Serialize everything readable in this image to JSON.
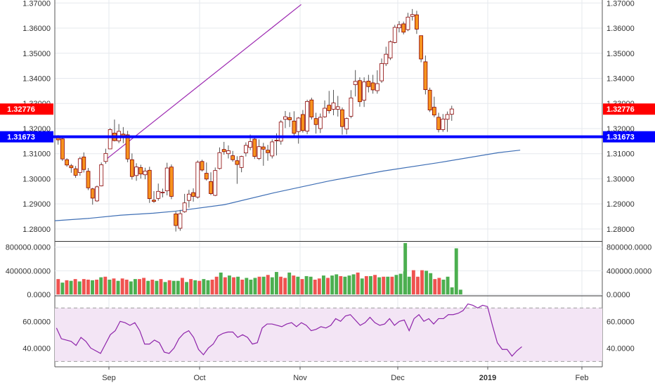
{
  "colors": {
    "up": "#26a69a",
    "down": "#ef5350",
    "candle_up_body": "#ffffff",
    "candle_down_body": "#f7931e",
    "candle_edge": "#8b0000",
    "vol_up": "#4caf50",
    "vol_down": "#ef5350",
    "sma": "#3f6fb5",
    "trendline": "#9c27b0",
    "support": "#0000ff",
    "price_badge": "#ff0000",
    "support_badge": "#0000ff",
    "rsi_line": "#8e24aa",
    "rsi_band": "#f3e5f5",
    "rsi_band_edge": "#9e9e9e",
    "grid": "#e6e9ee",
    "axis_text": "#333333"
  },
  "chart_data": [
    {
      "type": "candlestick",
      "panel": "price",
      "y_ticks": [
        "1.37000",
        "1.36000",
        "1.35000",
        "1.34000",
        "1.33000",
        "1.32000",
        "1.31000",
        "1.30000",
        "1.29000",
        "1.28000"
      ],
      "ylim": [
        1.2755,
        1.3712
      ],
      "badges": [
        {
          "label": "1.32776",
          "value": 1.32776,
          "color": "price_badge"
        },
        {
          "label": "1.31673",
          "value": 1.31673,
          "color": "support_badge"
        }
      ],
      "support_level": 1.31673,
      "trendline": [
        {
          "x": 0.09,
          "y": 1.3071
        },
        {
          "x": 0.45,
          "y": 1.3694
        }
      ],
      "sma": [
        [
          0,
          1.2833
        ],
        [
          0.06,
          1.2842
        ],
        [
          0.12,
          1.2855
        ],
        [
          0.18,
          1.2863
        ],
        [
          0.22,
          1.2871
        ],
        [
          0.31,
          1.2897
        ],
        [
          0.4,
          1.2944
        ],
        [
          0.5,
          1.2991
        ],
        [
          0.6,
          1.3031
        ],
        [
          0.7,
          1.3064
        ],
        [
          0.81,
          1.3104
        ],
        [
          0.85,
          1.3114
        ]
      ],
      "candles": [
        {
          "x": 0.006,
          "o": 1.3171,
          "h": 1.3174,
          "l": 1.3136,
          "c": 1.3155
        },
        {
          "x": 0.014,
          "o": 1.3159,
          "h": 1.3165,
          "l": 1.3071,
          "c": 1.3079
        },
        {
          "x": 0.022,
          "o": 1.3076,
          "h": 1.3082,
          "l": 1.3048,
          "c": 1.3055
        },
        {
          "x": 0.03,
          "o": 1.3052,
          "h": 1.3059,
          "l": 1.3024,
          "c": 1.3044
        },
        {
          "x": 0.038,
          "o": 1.304,
          "h": 1.3051,
          "l": 1.3004,
          "c": 1.3014
        },
        {
          "x": 0.046,
          "o": 1.3025,
          "h": 1.3088,
          "l": 1.3012,
          "c": 1.308
        },
        {
          "x": 0.053,
          "o": 1.3087,
          "h": 1.3105,
          "l": 1.3025,
          "c": 1.3037
        },
        {
          "x": 0.061,
          "o": 1.303,
          "h": 1.3043,
          "l": 1.2955,
          "c": 1.2964
        },
        {
          "x": 0.069,
          "o": 1.296,
          "h": 1.2964,
          "l": 1.2897,
          "c": 1.2923
        },
        {
          "x": 0.077,
          "o": 1.2912,
          "h": 1.2973,
          "l": 1.2908,
          "c": 1.2968
        },
        {
          "x": 0.085,
          "o": 1.2972,
          "h": 1.3065,
          "l": 1.297,
          "c": 1.3056
        },
        {
          "x": 0.093,
          "o": 1.3069,
          "h": 1.312,
          "l": 1.306,
          "c": 1.3101
        },
        {
          "x": 0.101,
          "o": 1.3119,
          "h": 1.3202,
          "l": 1.3119,
          "c": 1.3196
        },
        {
          "x": 0.109,
          "o": 1.3182,
          "h": 1.3236,
          "l": 1.3149,
          "c": 1.3152
        },
        {
          "x": 0.117,
          "o": 1.3151,
          "h": 1.3218,
          "l": 1.3142,
          "c": 1.3189
        },
        {
          "x": 0.125,
          "o": 1.3178,
          "h": 1.3206,
          "l": 1.3142,
          "c": 1.3166
        },
        {
          "x": 0.133,
          "o": 1.3175,
          "h": 1.3191,
          "l": 1.3066,
          "c": 1.3079
        },
        {
          "x": 0.141,
          "o": 1.3076,
          "h": 1.3101,
          "l": 1.2997,
          "c": 1.3009
        },
        {
          "x": 0.149,
          "o": 1.3013,
          "h": 1.3062,
          "l": 1.2992,
          "c": 1.3047
        },
        {
          "x": 0.157,
          "o": 1.3045,
          "h": 1.3056,
          "l": 1.3001,
          "c": 1.3019
        },
        {
          "x": 0.165,
          "o": 1.3016,
          "h": 1.3044,
          "l": 1.2998,
          "c": 1.3031
        },
        {
          "x": 0.173,
          "o": 1.3034,
          "h": 1.3048,
          "l": 1.2904,
          "c": 1.2921
        },
        {
          "x": 0.181,
          "o": 1.2915,
          "h": 1.2951,
          "l": 1.2904,
          "c": 1.291
        },
        {
          "x": 0.189,
          "o": 1.2922,
          "h": 1.2981,
          "l": 1.2913,
          "c": 1.295
        },
        {
          "x": 0.197,
          "o": 1.2945,
          "h": 1.2961,
          "l": 1.2926,
          "c": 1.2947
        },
        {
          "x": 0.205,
          "o": 1.2952,
          "h": 1.3064,
          "l": 1.2934,
          "c": 1.3043
        },
        {
          "x": 0.213,
          "o": 1.3047,
          "h": 1.3057,
          "l": 1.2919,
          "c": 1.293
        },
        {
          "x": 0.221,
          "o": 1.286,
          "h": 1.2869,
          "l": 1.279,
          "c": 1.2814
        },
        {
          "x": 0.229,
          "o": 1.2803,
          "h": 1.2876,
          "l": 1.2793,
          "c": 1.2861
        },
        {
          "x": 0.237,
          "o": 1.2869,
          "h": 1.294,
          "l": 1.2865,
          "c": 1.2904
        },
        {
          "x": 0.245,
          "o": 1.2914,
          "h": 1.2956,
          "l": 1.2885,
          "c": 1.2939
        },
        {
          "x": 0.253,
          "o": 1.2945,
          "h": 1.2962,
          "l": 1.2909,
          "c": 1.293
        },
        {
          "x": 0.261,
          "o": 1.2927,
          "h": 1.3073,
          "l": 1.2921,
          "c": 1.3066
        },
        {
          "x": 0.269,
          "o": 1.3069,
          "h": 1.3076,
          "l": 1.3029,
          "c": 1.3035
        },
        {
          "x": 0.277,
          "o": 1.3022,
          "h": 1.3065,
          "l": 1.2993,
          "c": 1.2999
        },
        {
          "x": 0.285,
          "o": 1.2989,
          "h": 1.3026,
          "l": 1.2935,
          "c": 1.2941
        },
        {
          "x": 0.293,
          "o": 1.2934,
          "h": 1.3045,
          "l": 1.2931,
          "c": 1.3033
        },
        {
          "x": 0.301,
          "o": 1.3041,
          "h": 1.3125,
          "l": 1.3037,
          "c": 1.3104
        },
        {
          "x": 0.309,
          "o": 1.3117,
          "h": 1.3147,
          "l": 1.3096,
          "c": 1.3108
        },
        {
          "x": 0.317,
          "o": 1.31,
          "h": 1.3133,
          "l": 1.3081,
          "c": 1.3112
        },
        {
          "x": 0.325,
          "o": 1.3092,
          "h": 1.3111,
          "l": 1.3068,
          "c": 1.3076
        },
        {
          "x": 0.333,
          "o": 1.3072,
          "h": 1.309,
          "l": 1.298,
          "c": 1.3057
        },
        {
          "x": 0.341,
          "o": 1.3045,
          "h": 1.3092,
          "l": 1.3026,
          "c": 1.3089
        },
        {
          "x": 0.349,
          "o": 1.3103,
          "h": 1.3145,
          "l": 1.3089,
          "c": 1.3133
        },
        {
          "x": 0.357,
          "o": 1.3125,
          "h": 1.3176,
          "l": 1.3114,
          "c": 1.3148
        },
        {
          "x": 0.365,
          "o": 1.3158,
          "h": 1.3168,
          "l": 1.3079,
          "c": 1.3089
        },
        {
          "x": 0.373,
          "o": 1.3081,
          "h": 1.3157,
          "l": 1.3075,
          "c": 1.3128
        },
        {
          "x": 0.381,
          "o": 1.3127,
          "h": 1.3143,
          "l": 1.3052,
          "c": 1.3118
        },
        {
          "x": 0.389,
          "o": 1.3114,
          "h": 1.3135,
          "l": 1.3072,
          "c": 1.3104
        },
        {
          "x": 0.397,
          "o": 1.3091,
          "h": 1.3157,
          "l": 1.3081,
          "c": 1.3147
        },
        {
          "x": 0.405,
          "o": 1.3154,
          "h": 1.3181,
          "l": 1.3093,
          "c": 1.3154
        },
        {
          "x": 0.413,
          "o": 1.315,
          "h": 1.3234,
          "l": 1.3136,
          "c": 1.3226
        },
        {
          "x": 0.421,
          "o": 1.3237,
          "h": 1.327,
          "l": 1.3202,
          "c": 1.3247
        },
        {
          "x": 0.429,
          "o": 1.3244,
          "h": 1.3265,
          "l": 1.3206,
          "c": 1.3235
        },
        {
          "x": 0.437,
          "o": 1.323,
          "h": 1.3269,
          "l": 1.3164,
          "c": 1.3181
        },
        {
          "x": 0.445,
          "o": 1.3188,
          "h": 1.3246,
          "l": 1.314,
          "c": 1.3242
        },
        {
          "x": 0.453,
          "o": 1.3256,
          "h": 1.3274,
          "l": 1.3184,
          "c": 1.3192
        },
        {
          "x": 0.461,
          "o": 1.319,
          "h": 1.3315,
          "l": 1.3178,
          "c": 1.3308
        },
        {
          "x": 0.469,
          "o": 1.3314,
          "h": 1.3323,
          "l": 1.3236,
          "c": 1.3246
        },
        {
          "x": 0.477,
          "o": 1.324,
          "h": 1.3263,
          "l": 1.318,
          "c": 1.3216
        },
        {
          "x": 0.485,
          "o": 1.32,
          "h": 1.326,
          "l": 1.3182,
          "c": 1.3245
        },
        {
          "x": 0.493,
          "o": 1.3247,
          "h": 1.3312,
          "l": 1.3243,
          "c": 1.3281
        },
        {
          "x": 0.501,
          "o": 1.3293,
          "h": 1.335,
          "l": 1.326,
          "c": 1.3271
        },
        {
          "x": 0.509,
          "o": 1.3277,
          "h": 1.3354,
          "l": 1.3253,
          "c": 1.3302
        },
        {
          "x": 0.517,
          "o": 1.3277,
          "h": 1.333,
          "l": 1.3248,
          "c": 1.3287
        },
        {
          "x": 0.525,
          "o": 1.3275,
          "h": 1.3284,
          "l": 1.3176,
          "c": 1.3208
        },
        {
          "x": 0.533,
          "o": 1.3198,
          "h": 1.3244,
          "l": 1.3177,
          "c": 1.324
        },
        {
          "x": 0.541,
          "o": 1.3249,
          "h": 1.3353,
          "l": 1.3241,
          "c": 1.3322
        },
        {
          "x": 0.549,
          "o": 1.3375,
          "h": 1.3433,
          "l": 1.3328,
          "c": 1.3388
        },
        {
          "x": 0.557,
          "o": 1.3391,
          "h": 1.3404,
          "l": 1.3287,
          "c": 1.3307
        },
        {
          "x": 0.565,
          "o": 1.3313,
          "h": 1.3404,
          "l": 1.3286,
          "c": 1.3386
        },
        {
          "x": 0.573,
          "o": 1.3389,
          "h": 1.3414,
          "l": 1.3344,
          "c": 1.3367
        },
        {
          "x": 0.581,
          "o": 1.3382,
          "h": 1.3414,
          "l": 1.3339,
          "c": 1.3354
        },
        {
          "x": 0.589,
          "o": 1.3351,
          "h": 1.3432,
          "l": 1.3339,
          "c": 1.3379
        },
        {
          "x": 0.597,
          "o": 1.339,
          "h": 1.3479,
          "l": 1.3382,
          "c": 1.3459
        },
        {
          "x": 0.605,
          "o": 1.3458,
          "h": 1.3526,
          "l": 1.3449,
          "c": 1.3496
        },
        {
          "x": 0.613,
          "o": 1.3481,
          "h": 1.3551,
          "l": 1.3473,
          "c": 1.3546
        },
        {
          "x": 0.621,
          "o": 1.3543,
          "h": 1.3613,
          "l": 1.3539,
          "c": 1.3603
        },
        {
          "x": 0.629,
          "o": 1.3601,
          "h": 1.3628,
          "l": 1.3583,
          "c": 1.3614
        },
        {
          "x": 0.637,
          "o": 1.3617,
          "h": 1.3626,
          "l": 1.3575,
          "c": 1.3584
        },
        {
          "x": 0.645,
          "o": 1.3594,
          "h": 1.3661,
          "l": 1.3588,
          "c": 1.3644
        },
        {
          "x": 0.653,
          "o": 1.3647,
          "h": 1.3676,
          "l": 1.363,
          "c": 1.3654
        },
        {
          "x": 0.661,
          "o": 1.3653,
          "h": 1.3669,
          "l": 1.3577,
          "c": 1.3596
        },
        {
          "x": 0.669,
          "o": 1.357,
          "h": 1.357,
          "l": 1.3464,
          "c": 1.3477
        },
        {
          "x": 0.677,
          "o": 1.3466,
          "h": 1.3491,
          "l": 1.3336,
          "c": 1.3355
        },
        {
          "x": 0.685,
          "o": 1.3353,
          "h": 1.3363,
          "l": 1.3266,
          "c": 1.3274
        },
        {
          "x": 0.693,
          "o": 1.3285,
          "h": 1.3327,
          "l": 1.3245,
          "c": 1.3254
        },
        {
          "x": 0.701,
          "o": 1.3245,
          "h": 1.3263,
          "l": 1.3185,
          "c": 1.3196
        },
        {
          "x": 0.709,
          "o": 1.3196,
          "h": 1.3258,
          "l": 1.3187,
          "c": 1.3238
        },
        {
          "x": 0.717,
          "o": 1.3237,
          "h": 1.3268,
          "l": 1.3187,
          "c": 1.3256
        },
        {
          "x": 0.725,
          "o": 1.3257,
          "h": 1.3291,
          "l": 1.3231,
          "c": 1.3278
        }
      ]
    },
    {
      "type": "bar",
      "panel": "volume",
      "y_ticks": [
        "800000.0000",
        "400000.0000",
        "0.0000"
      ],
      "ylim": [
        0,
        880000
      ],
      "values": [
        260000,
        200000,
        240000,
        230000,
        260000,
        220000,
        260000,
        250000,
        240000,
        250000,
        290000,
        300000,
        250000,
        270000,
        230000,
        270000,
        250000,
        220000,
        260000,
        260000,
        280000,
        230000,
        250000,
        230000,
        260000,
        210000,
        240000,
        230000,
        230000,
        280000,
        210000,
        260000,
        240000,
        230000,
        260000,
        240000,
        250000,
        300000,
        370000,
        290000,
        320000,
        290000,
        300000,
        250000,
        280000,
        250000,
        280000,
        300000,
        300000,
        330000,
        290000,
        380000,
        300000,
        280000,
        370000,
        320000,
        300000,
        260000,
        310000,
        300000,
        250000,
        270000,
        320000,
        280000,
        320000,
        340000,
        310000,
        300000,
        320000,
        340000,
        370000,
        270000,
        310000,
        310000,
        330000,
        290000,
        300000,
        300000,
        300000,
        330000,
        350000,
        390000,
        300000,
        410000,
        300000,
        410000,
        400000,
        360000,
        260000,
        280000,
        250000,
        300000,
        120000,
        780000
      ],
      "up": [
        false,
        true,
        false,
        true,
        false,
        true,
        false,
        false,
        true,
        false,
        true,
        false,
        true,
        false,
        true,
        false,
        false,
        true,
        true,
        false,
        false,
        true,
        false,
        true,
        false,
        true,
        false,
        true,
        true,
        false,
        true,
        false,
        true,
        false,
        true,
        true,
        false,
        false,
        true,
        false,
        true,
        false,
        true,
        false,
        true,
        true,
        true,
        false,
        true,
        false,
        true,
        true,
        false,
        false,
        true,
        false,
        true,
        false,
        true,
        true,
        false,
        false,
        true,
        false,
        true,
        true,
        false,
        true,
        true,
        true,
        false,
        true,
        false,
        true,
        false,
        true,
        false,
        true,
        false,
        true,
        true,
        true,
        true,
        false,
        false,
        false,
        true,
        true,
        false,
        false,
        true,
        true,
        true,
        true
      ],
      "special": [
        {
          "x": 0.738,
          "value": 80000,
          "up": true
        },
        {
          "x": 0.637,
          "value": 870000,
          "up": true
        }
      ]
    },
    {
      "type": "line",
      "panel": "rsi",
      "y_ticks": [
        "60.0000",
        "40.0000"
      ],
      "ylim": [
        26,
        78
      ],
      "band": [
        30,
        70
      ],
      "values": [
        55,
        47,
        46,
        45,
        42,
        48,
        45,
        40,
        38,
        36,
        43,
        50,
        53,
        60,
        59,
        57,
        59,
        53,
        43,
        43,
        46,
        44,
        37,
        36,
        40,
        47,
        51,
        53,
        48,
        39,
        35,
        40,
        43,
        49,
        51,
        52,
        52,
        48,
        50,
        48,
        43,
        44,
        55,
        58,
        58,
        57,
        56,
        58,
        59,
        56,
        59,
        57,
        53,
        54,
        56,
        55,
        57,
        62,
        60,
        64,
        65,
        61,
        57,
        59,
        63,
        59,
        57,
        58,
        62,
        57,
        60,
        61,
        53,
        62,
        65,
        60,
        62,
        58,
        62,
        62,
        65,
        65,
        66,
        68,
        73,
        72,
        70,
        72,
        71,
        57,
        44,
        39,
        39,
        34,
        38,
        41
      ]
    }
  ],
  "x_axis": {
    "labels": [
      "Sep",
      "Oct",
      "Nov",
      "Dec",
      "2019",
      "Feb"
    ]
  }
}
